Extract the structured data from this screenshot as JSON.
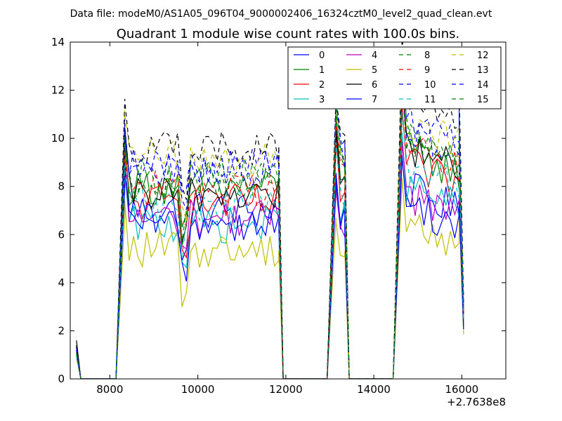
{
  "suptitle": "Data file: modeM0/AS1A05_096T04_9000002406_16324cztM0_level2_quad_clean.evt",
  "chart_data": {
    "type": "line",
    "title": "Quadrant 1 module wise count rates with 100.0s bins.",
    "xlabel": "",
    "ylabel": "",
    "x_offset_label": "+2.7638e8",
    "xlim": [
      7100,
      17000
    ],
    "ylim": [
      0,
      14
    ],
    "x_ticks": [
      8000,
      10000,
      12000,
      14000,
      16000
    ],
    "x_tick_labels": [
      "8000",
      "10000",
      "12000",
      "14000",
      "16000"
    ],
    "y_ticks": [
      0,
      2,
      4,
      6,
      8,
      10,
      12,
      14
    ],
    "y_tick_labels": [
      "0",
      "2",
      "4",
      "6",
      "8",
      "10",
      "12",
      "14"
    ],
    "grid": false,
    "legend_position": "top-right",
    "legend_columns": 4,
    "segments": [
      {
        "start": 7240,
        "end": 7340,
        "bins": 2
      },
      {
        "start": 7340,
        "end": 8140,
        "bins": 9,
        "zero": true
      },
      {
        "start": 8140,
        "end": 8340,
        "bins": 3,
        "rise": true
      },
      {
        "start": 8340,
        "end": 11840,
        "bins": 36
      },
      {
        "start": 11840,
        "end": 11940,
        "bins": 2,
        "fall": true
      },
      {
        "start": 11940,
        "end": 12940,
        "bins": 11,
        "zero": true
      },
      {
        "start": 12940,
        "end": 13140,
        "bins": 3,
        "rise": true
      },
      {
        "start": 13140,
        "end": 13340,
        "bins": 3
      },
      {
        "start": 13340,
        "end": 13440,
        "bins": 2,
        "fall": true
      },
      {
        "start": 13440,
        "end": 14440,
        "bins": 11,
        "zero": true
      },
      {
        "start": 14440,
        "end": 14640,
        "bins": 3,
        "rise": true
      },
      {
        "start": 14640,
        "end": 15940,
        "bins": 14
      },
      {
        "start": 15940,
        "end": 16040,
        "bins": 2,
        "fall": true
      }
    ],
    "series": [
      {
        "name": "0",
        "color": "#0000ff",
        "dash": false,
        "level1": 7.0,
        "level2": 6.8,
        "level3": 8.0,
        "start": 1.2
      },
      {
        "name": "1",
        "color": "#008000",
        "dash": false,
        "level1": 8.0,
        "level2": 8.8,
        "level3": 9.6,
        "start": 1.3
      },
      {
        "name": "2",
        "color": "#ff0000",
        "dash": false,
        "level1": 7.3,
        "level2": 7.8,
        "level3": 9.0,
        "start": 1.1
      },
      {
        "name": "3",
        "color": "#00bfbf",
        "dash": false,
        "level1": 6.4,
        "level2": 6.9,
        "level3": 8.1,
        "start": 1.0
      },
      {
        "name": "4",
        "color": "#bf00bf",
        "dash": false,
        "level1": 6.7,
        "level2": 6.6,
        "level3": 7.8,
        "start": 1.1
      },
      {
        "name": "5",
        "color": "#bfbf00",
        "dash": false,
        "level1": 5.4,
        "level2": 5.3,
        "level3": 6.6,
        "start": 0.9
      },
      {
        "name": "6",
        "color": "#000000",
        "dash": false,
        "level1": 7.7,
        "level2": 8.2,
        "level3": 9.8,
        "start": 1.6
      },
      {
        "name": "7",
        "color": "#0000ff",
        "dash": false,
        "level1": 6.5,
        "level2": 6.4,
        "level3": 7.4,
        "start": 1.0
      },
      {
        "name": "8",
        "color": "#008000",
        "dash": true,
        "level1": 8.4,
        "level2": 9.2,
        "level3": 10.2,
        "start": 1.2
      },
      {
        "name": "9",
        "color": "#ff0000",
        "dash": true,
        "level1": 7.9,
        "level2": 8.8,
        "level3": 9.8,
        "start": 1.1
      },
      {
        "name": "10",
        "color": "#0000ff",
        "dash": true,
        "level1": 8.9,
        "level2": 9.4,
        "level3": 10.6,
        "start": 1.3
      },
      {
        "name": "11",
        "color": "#00bfbf",
        "dash": true,
        "level1": 7.2,
        "level2": 7.6,
        "level3": 8.9,
        "start": 1.0
      },
      {
        "name": "12",
        "color": "#bfbf00",
        "dash": true,
        "level1": 9.2,
        "level2": 9.1,
        "level3": 10.9,
        "start": 1.2
      },
      {
        "name": "13",
        "color": "#000000",
        "dash": true,
        "level1": 9.6,
        "level2": 9.8,
        "level3": 11.5,
        "start": 1.4
      },
      {
        "name": "14",
        "color": "#0000ff",
        "dash": true,
        "level1": 8.7,
        "level2": 9.5,
        "level3": 10.9,
        "start": 1.2
      },
      {
        "name": "15",
        "color": "#008000",
        "dash": true,
        "level1": 8.2,
        "level2": 9.0,
        "level3": 10.3,
        "start": 1.1
      }
    ]
  }
}
